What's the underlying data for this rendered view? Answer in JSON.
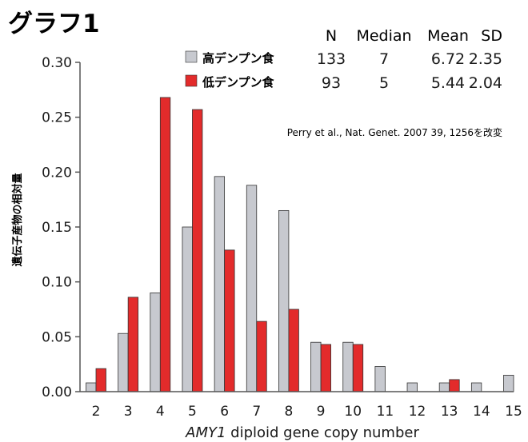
{
  "title": "グラフ1",
  "note": "Perry et al., Nat. Genet. 2007 39, 1256を改変",
  "colors": {
    "high": "#c7c9cf",
    "low": "#e32b2b",
    "stroke": "#333333",
    "axis": "#555555"
  },
  "table": {
    "headers": [
      "N",
      "Median",
      "Mean",
      "SD"
    ],
    "rows": [
      {
        "label": "高デンプン食",
        "color_key": "high",
        "values": [
          "133",
          "7",
          "6.72",
          "2.35"
        ]
      },
      {
        "label": "低デンプン食",
        "color_key": "low",
        "values": [
          "93",
          "5",
          "5.44",
          "2.04"
        ]
      }
    ]
  },
  "chart_data": {
    "type": "bar",
    "categories": [
      "2",
      "3",
      "4",
      "5",
      "6",
      "7",
      "8",
      "9",
      "10",
      "11",
      "12",
      "13",
      "14",
      "15"
    ],
    "series": [
      {
        "name": "高デンプン食",
        "values": [
          0.008,
          0.053,
          0.09,
          0.15,
          0.196,
          0.188,
          0.165,
          0.045,
          0.045,
          0.023,
          0.008,
          0.008,
          0.008,
          0.015
        ]
      },
      {
        "name": "低デンプン食",
        "values": [
          0.021,
          0.086,
          0.268,
          0.257,
          0.129,
          0.064,
          0.075,
          0.043,
          0.043,
          0,
          0,
          0.011,
          0,
          0
        ]
      }
    ],
    "xlabel_em": "AMY1",
    "xlabel_rest": " diploid gene copy number",
    "ylabel": "遺伝子産物の相対量",
    "yticks": [
      "0.00",
      "0.05",
      "0.10",
      "0.15",
      "0.20",
      "0.25",
      "0.30"
    ],
    "ylim": [
      0,
      0.3
    ]
  }
}
